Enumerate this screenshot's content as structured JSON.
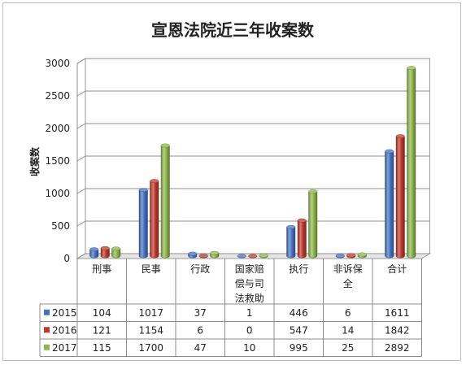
{
  "chart_data": {
    "type": "bar",
    "title": "宣恩法院近三年收案数",
    "ylabel": "收案数",
    "xlabel": "",
    "ylim": [
      0,
      3000
    ],
    "yticks": [
      0,
      500,
      1000,
      1500,
      2000,
      2500,
      3000
    ],
    "grid": true,
    "legend": "table-left",
    "categories": [
      "刑事",
      "民事",
      "行政",
      "国家赔偿与司法救助",
      "执行",
      "非诉保全",
      "合计"
    ],
    "category_labels": [
      [
        "刑事"
      ],
      [
        "民事"
      ],
      [
        "行政"
      ],
      [
        "国家赔",
        "偿与司",
        "法救助"
      ],
      [
        "执行"
      ],
      [
        "非诉保",
        "全"
      ],
      [
        "合计"
      ]
    ],
    "series": [
      {
        "name": "2015",
        "color": "#4472c4",
        "values": [
          104,
          1017,
          37,
          1,
          446,
          6,
          1611
        ]
      },
      {
        "name": "2016",
        "color": "#c0392b",
        "values": [
          121,
          1154,
          6,
          0,
          547,
          14,
          1842
        ]
      },
      {
        "name": "2017",
        "color": "#8db849",
        "values": [
          115,
          1700,
          47,
          10,
          995,
          25,
          2892
        ]
      }
    ]
  }
}
